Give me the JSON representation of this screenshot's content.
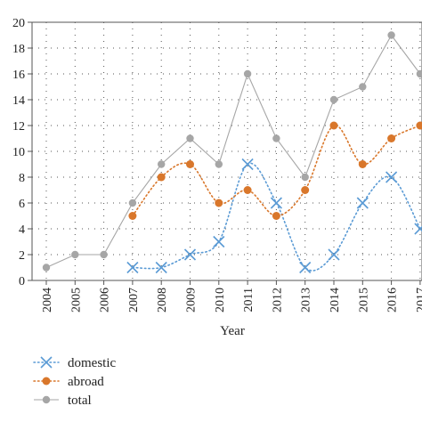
{
  "chart_data": {
    "type": "line",
    "xlabel": "Year",
    "ylabel": "",
    "ylim": [
      0,
      20
    ],
    "yticks": [
      0,
      2,
      4,
      6,
      8,
      10,
      12,
      14,
      16,
      18,
      20
    ],
    "grid": true,
    "legend_placement": "bottom-left",
    "categories": [
      "2004",
      "2005",
      "2006",
      "2007",
      "2008",
      "2009",
      "2010",
      "2011",
      "2012",
      "2013",
      "2014",
      "2015",
      "2016",
      "2017"
    ],
    "series": [
      {
        "name": "domestic",
        "marker": "x",
        "color": "#5B9BD5",
        "values": [
          null,
          null,
          null,
          1,
          1,
          2,
          3,
          9,
          6,
          1,
          2,
          6,
          8,
          4
        ]
      },
      {
        "name": "abroad",
        "marker": "dot",
        "color": "#D9772B",
        "values": [
          null,
          null,
          null,
          5,
          8,
          9,
          6,
          7,
          5,
          7,
          12,
          9,
          11,
          12
        ]
      },
      {
        "name": "total",
        "marker": "circle",
        "color": "#A6A6A6",
        "values": [
          1,
          2,
          2,
          6,
          9,
          11,
          9,
          16,
          11,
          8,
          14,
          15,
          19,
          16
        ]
      }
    ]
  }
}
